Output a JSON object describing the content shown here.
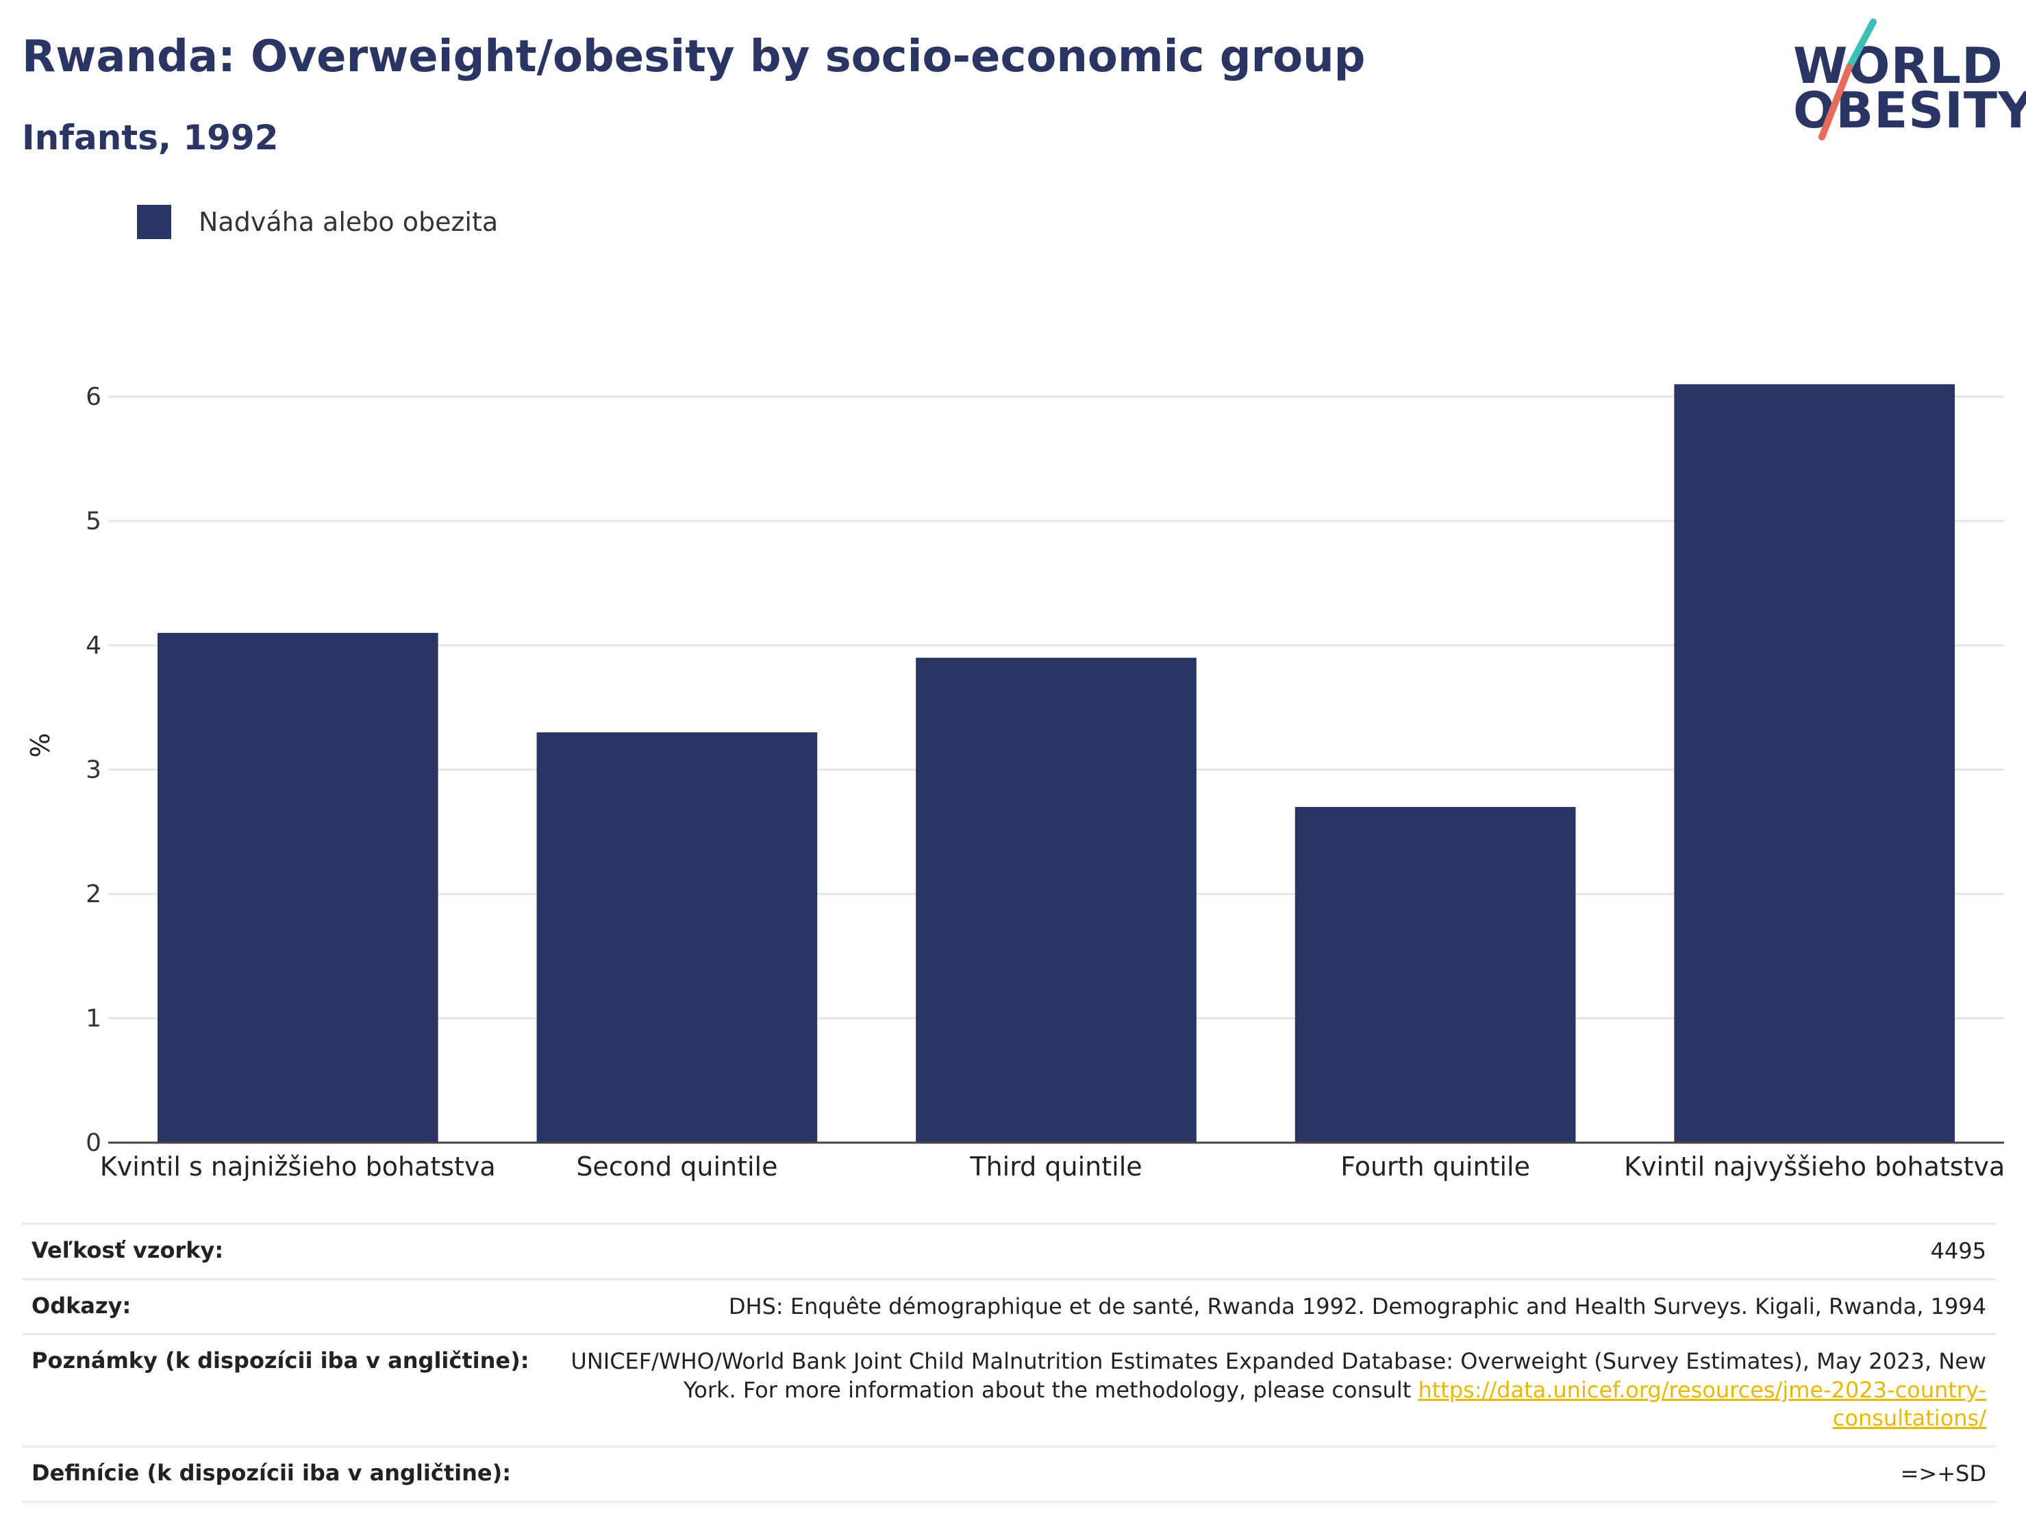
{
  "header": {
    "title": "Rwanda: Overweight/obesity by socio-economic group",
    "subtitle": "Infants, 1992"
  },
  "logo": {
    "line1": "WORLD",
    "line2": "OBESITY",
    "accent_colors": [
      "#3dbfb8",
      "#e86a5a"
    ]
  },
  "colors": {
    "bar": "#2a3564",
    "grid": "#e6e6e6",
    "axis": "#444444"
  },
  "legend": {
    "label": "Nadváha alebo obezita"
  },
  "chart_data": {
    "type": "bar",
    "categories": [
      "Kvintil s najnižšieho bohatstva",
      "Second quintile",
      "Third quintile",
      "Fourth quintile",
      "Kvintil najvyššieho bohatstva"
    ],
    "series": [
      {
        "name": "Nadváha alebo obezita",
        "values": [
          4.1,
          3.3,
          3.9,
          2.7,
          6.1
        ]
      }
    ],
    "ylabel": "%",
    "ylim": [
      0,
      7
    ],
    "yticks": [
      0,
      1,
      2,
      3,
      4,
      5,
      6
    ],
    "grid": true,
    "legend_position": "top-left"
  },
  "footer": {
    "sample_label": "Veľkosť vzorky:",
    "sample_value": "4495",
    "refs_label": "Odkazy:",
    "refs_value": "DHS: Enquête démographique et de santé, Rwanda 1992. Demographic and Health Surveys. Kigali, Rwanda, 1994",
    "notes_label": "Poznámky (k dispozícii iba v angličtine):",
    "notes_value_line1": "UNICEF/WHO/World Bank Joint Child Malnutrition Estimates Expanded Database: Overweight (Survey Estimates), May 2023, New",
    "notes_value_line2": "York. For more information about the methodology, please consult",
    "notes_link": "https://data.unicef.org/resources/jme-2023-country-consultations/",
    "defs_label": "Definície (k dispozícii iba v angličtine):",
    "defs_value": "=>+SD"
  }
}
